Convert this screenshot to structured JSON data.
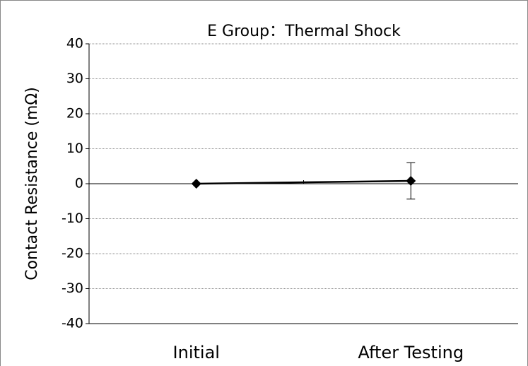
{
  "chart_data": {
    "type": "line",
    "title": "E Group：Thermal Shock",
    "y_label": "Contact Resistance (mΩ)",
    "categories": [
      "Initial",
      "After Testing"
    ],
    "series": [
      {
        "name": "E Group",
        "color": "#000000",
        "values": [
          0,
          0.8
        ],
        "errors": [
          0,
          5.2
        ]
      }
    ],
    "ylim": [
      -40,
      40
    ],
    "yticks": [
      -40,
      -30,
      -20,
      -10,
      0,
      10,
      20,
      30,
      40
    ],
    "grid": true
  }
}
